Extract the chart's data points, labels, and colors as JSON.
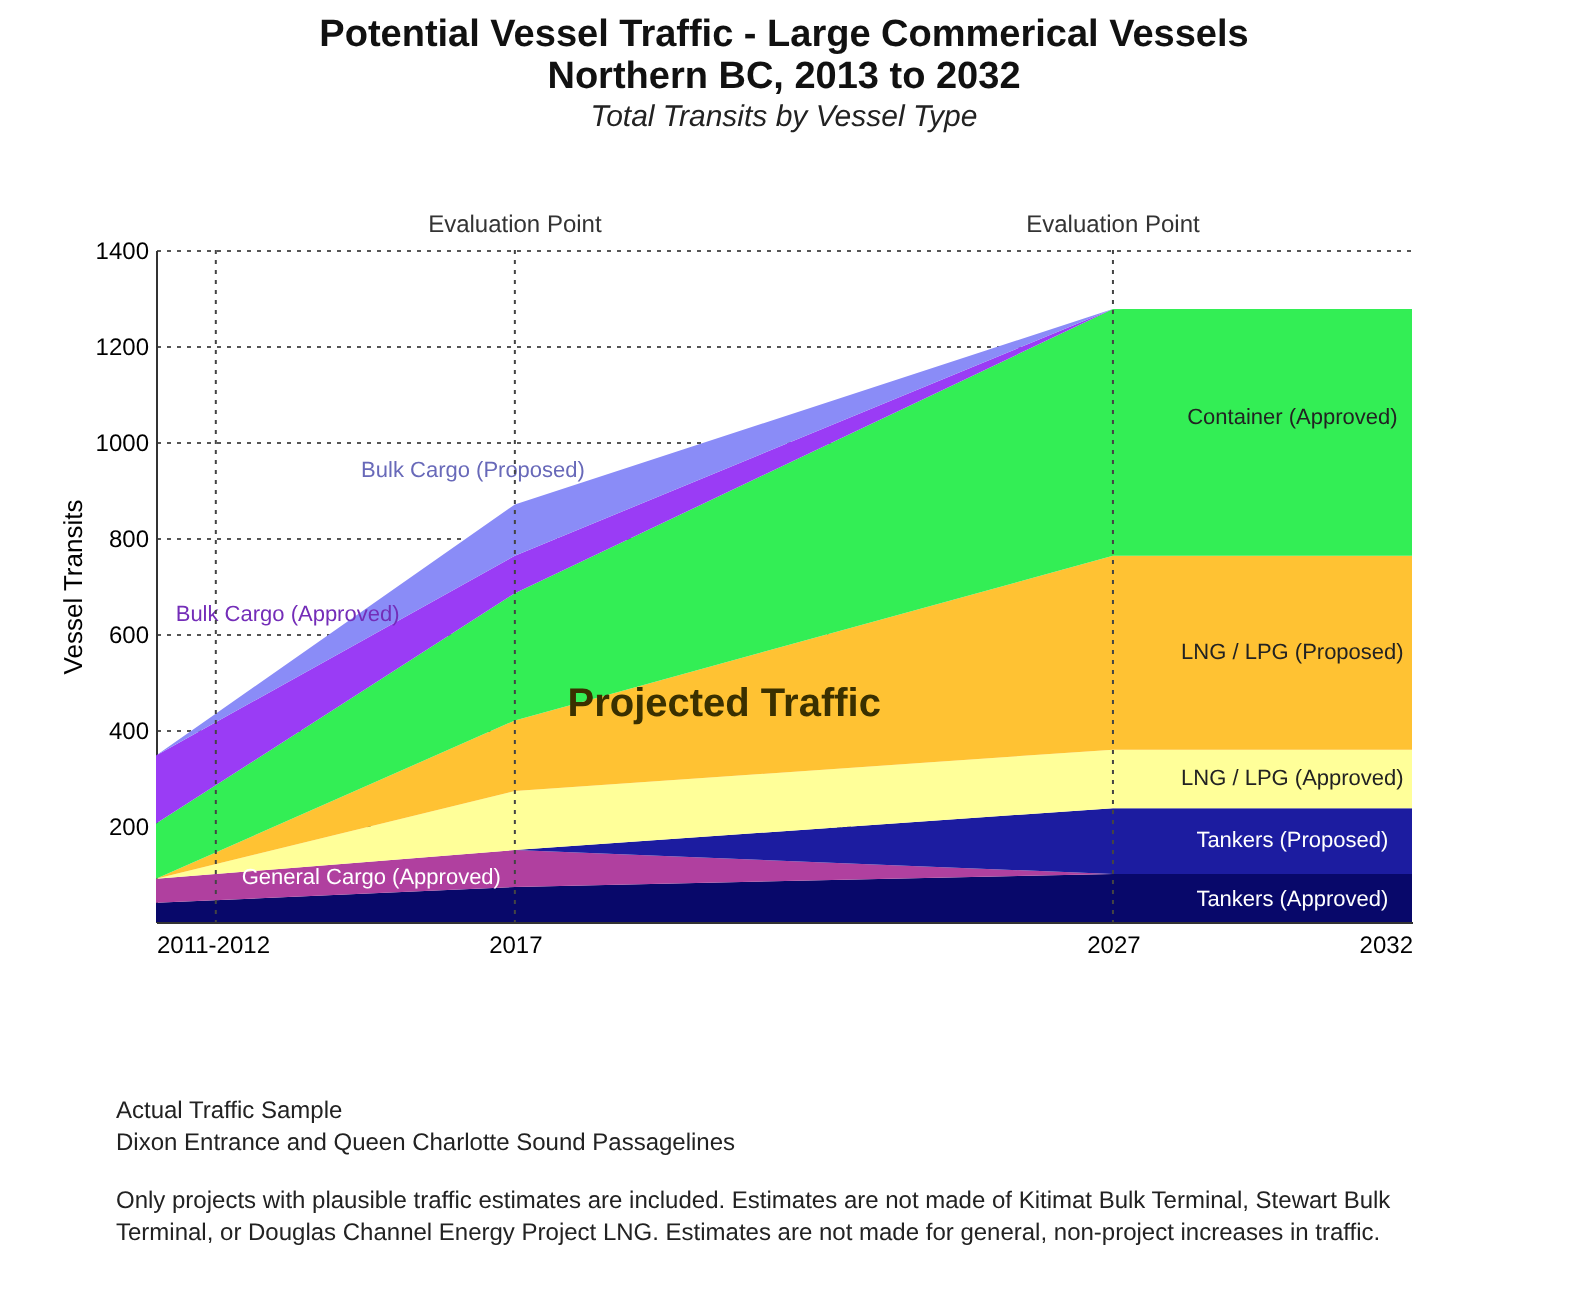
{
  "chart_data": {
    "type": "area",
    "stacked": true,
    "title": "Potential Vessel Traffic - Large Commerical Vessels\nNorthern BC, 2013 to 2032",
    "subtitle": "Total Transits by Vessel Type",
    "ylabel": "Vessel Transits",
    "x": [
      2011,
      2017,
      2027,
      2032
    ],
    "xlim": [
      2011,
      2032
    ],
    "xticks": [
      {
        "value": 2011,
        "label": "2011-2012"
      },
      2017,
      2027,
      2032
    ],
    "ylim": [
      0,
      1400
    ],
    "yticks": [
      200,
      400,
      600,
      800,
      1000,
      1200,
      1400
    ],
    "grid": "y",
    "legend": false,
    "series": [
      {
        "name": "Tankers (Approved)",
        "color": "#08086a",
        "values": [
          40,
          73,
          100,
          100
        ]
      },
      {
        "name": "General Cargo (Approved)",
        "color": "#b0409f",
        "values": [
          50,
          77,
          0,
          0
        ]
      },
      {
        "name": "Tankers (Proposed)",
        "color": "#1c1ca0",
        "values": [
          0,
          0,
          137,
          137
        ]
      },
      {
        "name": "LNG / LPG (Approved)",
        "color": "#ffff99",
        "values": [
          0,
          123,
          122,
          122
        ]
      },
      {
        "name": "LNG / LPG (Proposed)",
        "color": "#ffc233",
        "values": [
          0,
          147,
          404,
          404
        ]
      },
      {
        "name": "Container (Approved)",
        "color": "#33ee55",
        "values": [
          115,
          265,
          514,
          514
        ]
      },
      {
        "name": "Bulk Cargo (Approved)",
        "color": "#9a3cf5",
        "values": [
          142,
          78,
          0,
          0
        ]
      },
      {
        "name": "Bulk Cargo (Proposed)",
        "color": "#8a8cf7",
        "values": [
          0,
          107,
          0,
          0
        ]
      }
    ],
    "ref_lines": [
      {
        "axis": "x",
        "value": 2012,
        "line_style": "dotted"
      },
      {
        "axis": "x",
        "value": 2017,
        "label": "Evaluation Point",
        "line_style": "dotted"
      },
      {
        "axis": "x",
        "value": 2027,
        "label": "Evaluation Point",
        "line_style": "dotted"
      }
    ],
    "annotations": [
      "Projected Traffic",
      "Actual Traffic Sample",
      "Dixon Entrance and Queen Charlotte Sound Passagelines",
      "Only projects with plausible traffic estimates are included.  Estimates are not made of Kitimat Bulk Terminal, Stewart Bulk Terminal,  or Douglas Channel Energy Project LNG.  Estimates are not made for general, non-project increases in traffic."
    ]
  }
}
